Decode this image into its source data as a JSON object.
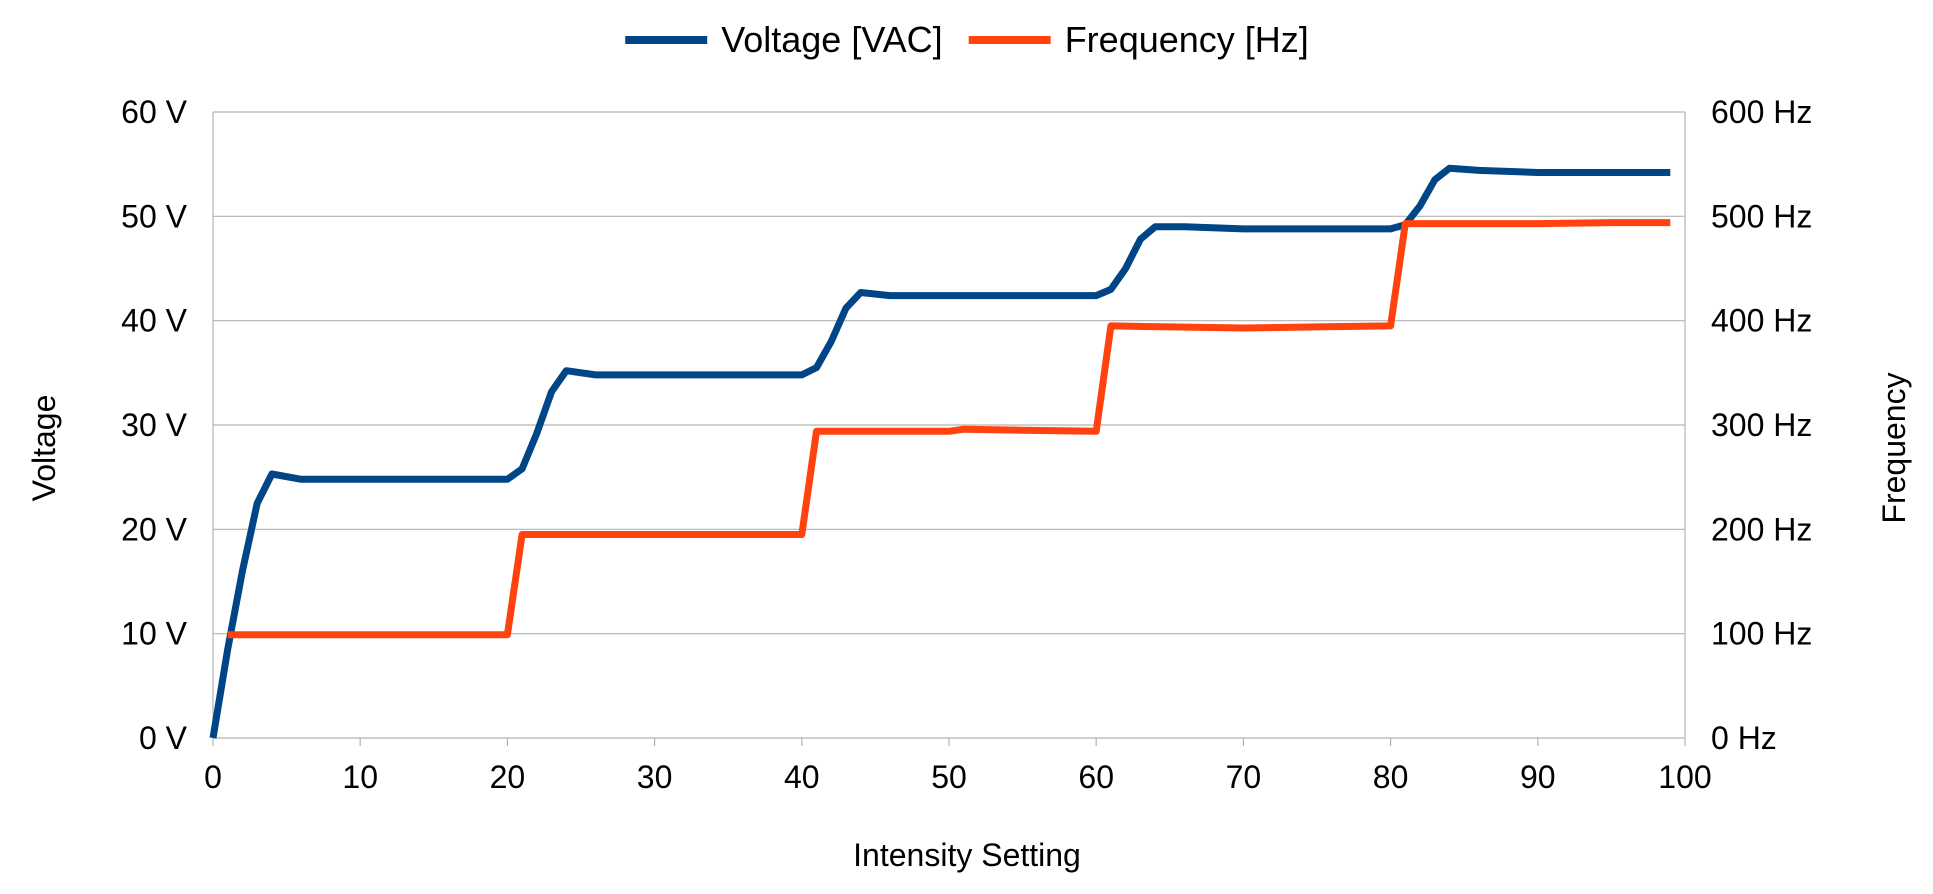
{
  "chart_data": {
    "type": "line",
    "title": "",
    "xlabel": "Intensity Setting",
    "ylabel": "Voltage",
    "y2label": "Frequency",
    "xlim": [
      0,
      100
    ],
    "ylim": [
      0,
      60
    ],
    "y2lim": [
      0,
      600
    ],
    "x_ticks": [
      0,
      10,
      20,
      30,
      40,
      50,
      60,
      70,
      80,
      90,
      100
    ],
    "y_ticks": [
      0,
      10,
      20,
      30,
      40,
      50,
      60
    ],
    "y_tick_labels": [
      "0 V",
      "10 V",
      "20 V",
      "30 V",
      "40 V",
      "50 V",
      "60 V"
    ],
    "y2_ticks": [
      0,
      100,
      200,
      300,
      400,
      500,
      600
    ],
    "y2_tick_labels": [
      "0 Hz",
      "100 Hz",
      "200 Hz",
      "300 Hz",
      "400 Hz",
      "500 Hz",
      "600 Hz"
    ],
    "grid": true,
    "legend_position": "top-center",
    "series": [
      {
        "name": "Voltage [VAC]",
        "axis": "left",
        "color": "#004586",
        "x": [
          0,
          1,
          2,
          3,
          4,
          6,
          10,
          15,
          20,
          21,
          22,
          23,
          24,
          26,
          30,
          35,
          40,
          41,
          42,
          43,
          44,
          46,
          50,
          55,
          60,
          61,
          62,
          63,
          64,
          66,
          70,
          75,
          80,
          81,
          82,
          83,
          84,
          86,
          90,
          95,
          99
        ],
        "y": [
          0,
          8.5,
          16,
          22.5,
          25.3,
          24.8,
          24.8,
          24.8,
          24.8,
          25.8,
          29.2,
          33.2,
          35.2,
          34.8,
          34.8,
          34.8,
          34.8,
          35.5,
          38.0,
          41.2,
          42.7,
          42.4,
          42.4,
          42.4,
          42.4,
          43.0,
          45.0,
          47.8,
          49.0,
          49.0,
          48.8,
          48.8,
          48.8,
          49.2,
          51.0,
          53.5,
          54.6,
          54.4,
          54.2,
          54.2,
          54.2
        ]
      },
      {
        "name": "Frequency [Hz]",
        "axis": "right",
        "color": "#ff420e",
        "x": [
          1,
          5,
          10,
          15,
          20,
          21,
          25,
          30,
          35,
          40,
          41,
          45,
          50,
          51,
          55,
          60,
          61,
          65,
          70,
          75,
          80,
          81,
          85,
          90,
          95,
          99
        ],
        "y": [
          99,
          99,
          99,
          99,
          99,
          195,
          195,
          195,
          195,
          195,
          294,
          294,
          294,
          296,
          295,
          294,
          395,
          394,
          393,
          394,
          395,
          493,
          493,
          493,
          494,
          494
        ]
      }
    ]
  }
}
